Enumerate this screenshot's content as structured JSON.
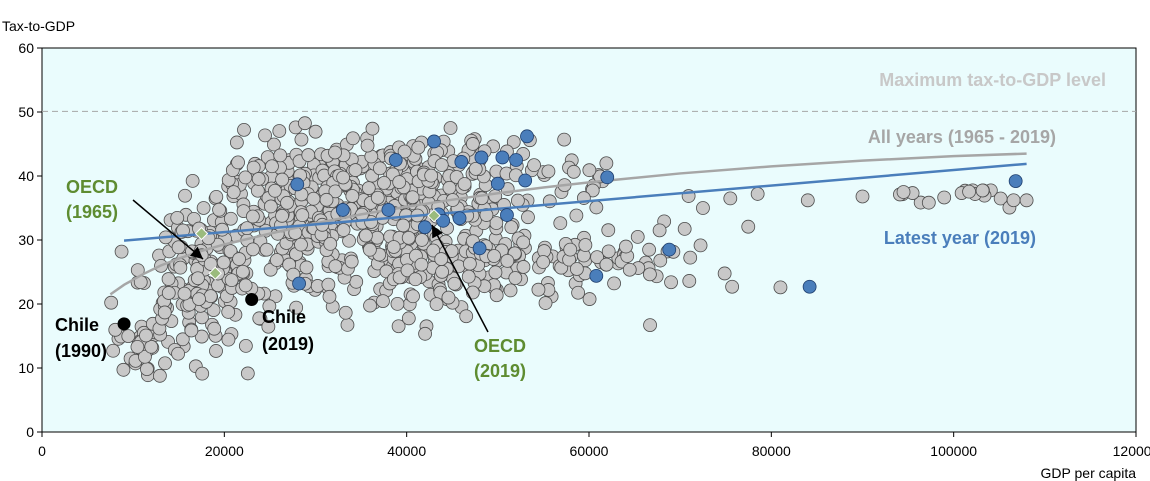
{
  "chart_data": {
    "type": "scatter",
    "title": "",
    "ylabel": "Tax-to-GDP",
    "xlabel": "GDP per capita",
    "xlim": [
      0,
      120000
    ],
    "ylim": [
      0,
      60
    ],
    "x_ticks": [
      0,
      20000,
      40000,
      60000,
      80000,
      100000,
      120000
    ],
    "y_ticks": [
      0,
      10,
      20,
      30,
      40,
      50,
      60
    ],
    "background": "#eafcfd",
    "colors": {
      "grey_points": "#c8c8c8",
      "blue_points": "#4a7ebb",
      "green_points": "#9bbb7d",
      "chile_points": "#000000",
      "all_years_curve": "#a6a6a6",
      "latest_year_line": "#4a7ebb",
      "max_line": "#a6a6a6",
      "oecd_text": "#5e8c31"
    },
    "series": [
      {
        "name": "Latest year (2019)",
        "points": [
          [
            28000,
            38.7
          ],
          [
            28200,
            23.2
          ],
          [
            33000,
            34.7
          ],
          [
            38000,
            34.7
          ],
          [
            38800,
            42.5
          ],
          [
            42000,
            32.0
          ],
          [
            43000,
            45.4
          ],
          [
            43500,
            34.0
          ],
          [
            44000,
            33.0
          ],
          [
            45800,
            33.4
          ],
          [
            46000,
            42.2
          ],
          [
            48000,
            28.7
          ],
          [
            48200,
            42.9
          ],
          [
            50000,
            38.8
          ],
          [
            50500,
            42.9
          ],
          [
            51000,
            33.9
          ],
          [
            52000,
            42.5
          ],
          [
            53000,
            39.3
          ],
          [
            53200,
            46.2
          ],
          [
            60800,
            24.4
          ],
          [
            62000,
            39.8
          ],
          [
            68800,
            28.5
          ],
          [
            84200,
            22.7
          ],
          [
            106800,
            39.2
          ]
        ]
      },
      {
        "name": "All years (1965 - 2019)",
        "curve": [
          [
            7500,
            21.5
          ],
          [
            9000,
            23.0
          ],
          [
            11000,
            24.6
          ],
          [
            13000,
            26.0
          ],
          [
            15000,
            27.1
          ],
          [
            17500,
            28.3
          ],
          [
            20000,
            29.3
          ],
          [
            25000,
            31.0
          ],
          [
            30000,
            32.6
          ],
          [
            35000,
            34.0
          ],
          [
            40000,
            35.2
          ],
          [
            45000,
            36.3
          ],
          [
            50000,
            37.3
          ],
          [
            55000,
            38.2
          ],
          [
            60000,
            39.0
          ],
          [
            70000,
            40.4
          ],
          [
            80000,
            41.5
          ],
          [
            90000,
            42.4
          ],
          [
            100000,
            43.1
          ],
          [
            108000,
            43.5
          ]
        ]
      },
      {
        "name": "Latest year (2019) trend",
        "line": [
          [
            9000,
            29.9
          ],
          [
            108000,
            41.9
          ]
        ]
      },
      {
        "name": "Maximum tax-to-GDP level",
        "y": 50.1
      }
    ],
    "oecd_points": [
      [
        17500,
        31.0
      ],
      [
        19000,
        24.8
      ],
      [
        43000,
        33.8
      ]
    ],
    "chile_points": [
      [
        9000,
        16.9
      ],
      [
        23000,
        20.7
      ]
    ],
    "annotations": {
      "max_label": "Maximum tax-to-GDP level",
      "all_years_label": "All years (1965 - 2019)",
      "latest_label": "Latest year (2019)",
      "oecd_1965_line1": "OECD",
      "oecd_1965_line2": "(1965)",
      "oecd_2019_line1": "OECD",
      "oecd_2019_line2": "(2019)",
      "chile_1990_line1": "Chile",
      "chile_1990_line2": "(1990)",
      "chile_2019_line1": "Chile",
      "chile_2019_line2": "(2019)"
    },
    "grid": false,
    "legend": "none"
  }
}
